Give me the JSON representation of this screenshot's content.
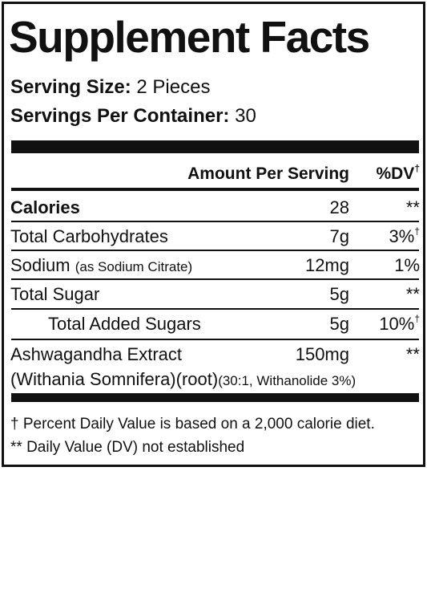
{
  "title": "Supplement Facts",
  "serving_size": {
    "label": "Serving Size:",
    "value": "2 Pieces"
  },
  "servings_per_container": {
    "label": "Servings Per Container:",
    "value": "30"
  },
  "header": {
    "amount": "Amount Per Serving",
    "dv": "%DV",
    "dv_mark": "†"
  },
  "rows": [
    {
      "name": "Calories",
      "amount": "28",
      "dv": "**"
    },
    {
      "name": "Total Carbohydrates",
      "amount": "7g",
      "dv": "3%",
      "dv_mark": "†"
    },
    {
      "name": "Sodium",
      "note": "(as Sodium Citrate)",
      "amount": "12mg",
      "dv": "1%"
    },
    {
      "name": "Total Sugar",
      "amount": "5g",
      "dv": "**"
    },
    {
      "name": "Total Added Sugars",
      "amount": "5g",
      "dv": "10%",
      "dv_mark": "†"
    },
    {
      "name": "Ashwagandha Extract",
      "amount": "150mg",
      "dv": "**",
      "line2": "(Withania Somnifera)(root)",
      "note": "(30:1, Withanolide 3%)"
    }
  ],
  "footnotes": [
    "† Percent Daily Value is based on a 2,000 calorie diet.",
    "** Daily Value (DV) not established"
  ]
}
